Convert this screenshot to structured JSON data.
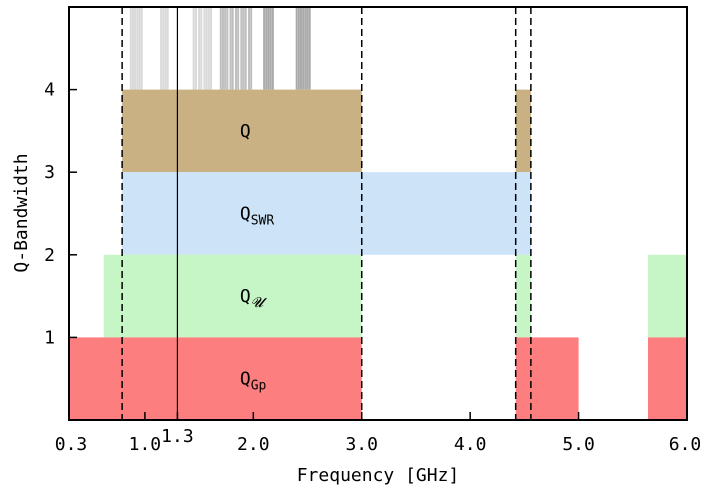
{
  "chart_data": {
    "type": "bar",
    "orientation": "horizontal-ranges",
    "xlabel": "Frequency [GHz]",
    "ylabel": "Q-Bandwidth",
    "xlim": [
      0.3,
      6.0
    ],
    "ylim": [
      0,
      5
    ],
    "xticks": [
      {
        "value": 0.3,
        "label": "0.3"
      },
      {
        "value": 1.0,
        "label": "1.0"
      },
      {
        "value": 1.3,
        "label": "1.3"
      },
      {
        "value": 2.0,
        "label": "2.0"
      },
      {
        "value": 3.0,
        "label": "3.0"
      },
      {
        "value": 4.0,
        "label": "4.0"
      },
      {
        "value": 5.0,
        "label": "5.0"
      },
      {
        "value": 6.0,
        "label": "6.0"
      }
    ],
    "yticks": [
      {
        "value": 1,
        "label": "1"
      },
      {
        "value": 2,
        "label": "2"
      },
      {
        "value": 3,
        "label": "3"
      },
      {
        "value": 4,
        "label": "4"
      }
    ],
    "bands": [
      {
        "name": "Q",
        "main": "Q",
        "sub": "",
        "y0": 3,
        "y1": 4,
        "color": "#c9b184",
        "ranges": [
          [
            0.79,
            3.0
          ],
          [
            4.42,
            4.56
          ]
        ]
      },
      {
        "name": "QSWR",
        "main": "Q",
        "sub": "SWR",
        "y0": 2,
        "y1": 3,
        "color": "#cde3f8",
        "ranges": [
          [
            0.79,
            4.56
          ]
        ]
      },
      {
        "name": "QU",
        "main": "Q",
        "sub": "𝓤",
        "y0": 1,
        "y1": 2,
        "color": "#c6f5c6",
        "ranges": [
          [
            0.62,
            3.0
          ],
          [
            4.42,
            4.56
          ],
          [
            5.64,
            6.0
          ]
        ]
      },
      {
        "name": "QGp",
        "main": "Q",
        "sub": "Gp",
        "y0": 0,
        "y1": 1,
        "color": "#fd7e7e",
        "ranges": [
          [
            0.3,
            3.0
          ],
          [
            4.42,
            5.0
          ],
          [
            5.64,
            6.0
          ]
        ]
      }
    ],
    "dashed_lines_x": [
      0.79,
      3.0,
      4.42,
      4.56
    ],
    "solid_line_x": 1.3,
    "interference_lines": [
      {
        "x": 0.87,
        "color": "#d9d9d9"
      },
      {
        "x": 0.89,
        "color": "#d9d9d9"
      },
      {
        "x": 0.91,
        "color": "#d9d9d9"
      },
      {
        "x": 0.93,
        "color": "#d9d9d9"
      },
      {
        "x": 0.95,
        "color": "#d9d9d9"
      },
      {
        "x": 0.97,
        "color": "#d9d9d9"
      },
      {
        "x": 1.15,
        "color": "#d9d9d9"
      },
      {
        "x": 1.17,
        "color": "#d9d9d9"
      },
      {
        "x": 1.19,
        "color": "#d9d9d9"
      },
      {
        "x": 1.21,
        "color": "#d9d9d9"
      },
      {
        "x": 1.45,
        "color": "#d9d9d9"
      },
      {
        "x": 1.47,
        "color": "#d9d9d9"
      },
      {
        "x": 1.5,
        "color": "#d9d9d9"
      },
      {
        "x": 1.52,
        "color": "#d9d9d9"
      },
      {
        "x": 1.55,
        "color": "#d9d9d9"
      },
      {
        "x": 1.57,
        "color": "#d9d9d9"
      },
      {
        "x": 1.59,
        "color": "#d9d9d9"
      },
      {
        "x": 1.61,
        "color": "#d9d9d9"
      },
      {
        "x": 1.7,
        "color": "#bfbfbf"
      },
      {
        "x": 1.72,
        "color": "#bfbfbf"
      },
      {
        "x": 1.74,
        "color": "#bfbfbf"
      },
      {
        "x": 1.76,
        "color": "#bfbfbf"
      },
      {
        "x": 1.79,
        "color": "#bfbfbf"
      },
      {
        "x": 1.81,
        "color": "#bfbfbf"
      },
      {
        "x": 1.84,
        "color": "#bfbfbf"
      },
      {
        "x": 1.86,
        "color": "#bfbfbf"
      },
      {
        "x": 1.89,
        "color": "#bfbfbf"
      },
      {
        "x": 1.91,
        "color": "#bfbfbf"
      },
      {
        "x": 1.93,
        "color": "#bfbfbf"
      },
      {
        "x": 1.96,
        "color": "#bfbfbf"
      },
      {
        "x": 1.98,
        "color": "#bfbfbf"
      },
      {
        "x": 2.1,
        "color": "#a9a9a9"
      },
      {
        "x": 2.12,
        "color": "#a9a9a9"
      },
      {
        "x": 2.14,
        "color": "#a9a9a9"
      },
      {
        "x": 2.16,
        "color": "#a9a9a9"
      },
      {
        "x": 2.18,
        "color": "#a9a9a9"
      },
      {
        "x": 2.4,
        "color": "#a9a9a9"
      },
      {
        "x": 2.42,
        "color": "#a9a9a9"
      },
      {
        "x": 2.44,
        "color": "#a9a9a9"
      },
      {
        "x": 2.46,
        "color": "#a9a9a9"
      },
      {
        "x": 2.48,
        "color": "#a9a9a9"
      },
      {
        "x": 2.5,
        "color": "#a9a9a9"
      },
      {
        "x": 2.52,
        "color": "#a9a9a9"
      }
    ]
  }
}
